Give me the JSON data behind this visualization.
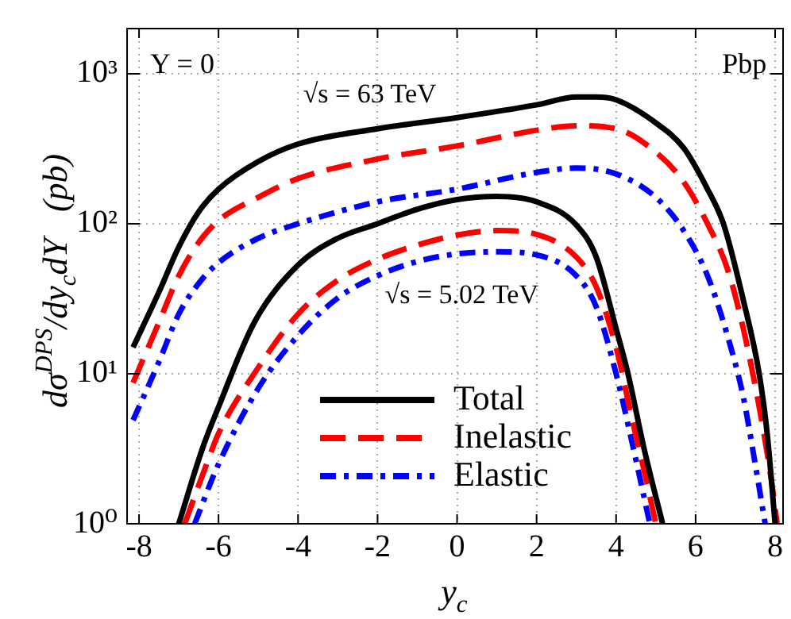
{
  "chart_data": {
    "type": "line",
    "xlabel": "y$_{c}$",
    "ylabel": "dσ$^{DPS}$/dy$_{c}$dY   (pb)",
    "annotations": [
      "Y = 0",
      "Pbp",
      "√s = 63 TeV",
      "√s = 5.02 TeV"
    ],
    "xlim": [
      -8.3,
      8.2
    ],
    "xticks": [
      -8,
      -6,
      -4,
      -2,
      0,
      2,
      4,
      6,
      8
    ],
    "ylim": [
      1,
      2000
    ],
    "yticks": [
      {
        "value": 1,
        "label": "10⁰"
      },
      {
        "value": 10,
        "label": "10¹"
      },
      {
        "value": 100,
        "label": "10²"
      },
      {
        "value": 1000,
        "label": "10³"
      }
    ],
    "log": "y",
    "grid": true,
    "legend": "bottom",
    "marker": "none",
    "series": [
      {
        "name": "Total",
        "color": "#000000",
        "line_style": "solid",
        "x": [
          -8.15,
          -7.5,
          -7,
          -6.5,
          -6,
          -5,
          -4,
          -2,
          0,
          2,
          3,
          3.5,
          4,
          5,
          5.7,
          6.3,
          6.7,
          7.2,
          7.6,
          7.8,
          8.0
        ],
        "values": [
          15,
          35,
          70,
          120,
          170,
          260,
          340,
          430,
          510,
          620,
          700,
          700,
          670,
          470,
          320,
          170,
          100,
          31,
          10,
          4,
          1
        ]
      },
      {
        "name": "Inelastic",
        "color": "#ff0000",
        "line_style": "dashed",
        "x": [
          -8.15,
          -7.5,
          -7,
          -6.5,
          -6,
          -5,
          -4,
          -2,
          0,
          2,
          3,
          4,
          5,
          5.7,
          6.3,
          6.8,
          7.2,
          7.6,
          7.9,
          8.05
        ],
        "values": [
          8.7,
          22,
          45,
          75,
          105,
          150,
          200,
          270,
          330,
          420,
          450,
          430,
          300,
          190,
          100,
          50,
          20,
          6,
          2,
          1
        ]
      },
      {
        "name": "Elastic",
        "color": "#0000ff",
        "line_style": "dashdot",
        "x": [
          -8.15,
          -7.5,
          -7,
          -6.5,
          -6,
          -5,
          -4,
          -2,
          0,
          2,
          3,
          4,
          5,
          5.7,
          6.3,
          6.8,
          7.2,
          7.5,
          7.75
        ],
        "values": [
          4.9,
          12,
          25,
          40,
          55,
          80,
          100,
          140,
          170,
          220,
          235,
          215,
          150,
          90,
          45,
          18,
          7,
          2.5,
          1
        ]
      },
      {
        "color": "#000000",
        "line_style": "solid",
        "x": [
          -7.0,
          -6.4,
          -6,
          -5.1,
          -4,
          -3,
          -2,
          -1,
          0,
          1,
          2,
          3,
          3.5,
          4,
          4.3,
          4.7,
          5.17
        ],
        "values": [
          1,
          3.2,
          6,
          22,
          53,
          80,
          100,
          125,
          145,
          152,
          140,
          98,
          60,
          20,
          10,
          3.2,
          1
        ]
      },
      {
        "color": "#ff0000",
        "line_style": "dashed",
        "x": [
          -6.85,
          -6.3,
          -6,
          -5,
          -4,
          -3,
          -2,
          -1,
          0,
          1,
          2,
          3,
          3.5,
          4,
          4.4,
          4.7,
          5.0
        ],
        "values": [
          1,
          2.5,
          4,
          11,
          25,
          42,
          58,
          72,
          84,
          90,
          85,
          60,
          38,
          15,
          5,
          2.3,
          1
        ]
      },
      {
        "color": "#0000ff",
        "line_style": "dashdot",
        "x": [
          -6.6,
          -6,
          -5,
          -4,
          -3,
          -2,
          -1,
          0,
          1,
          2,
          3,
          3.5,
          4,
          4.4,
          4.85
        ],
        "values": [
          1,
          2.5,
          8,
          18,
          32,
          45,
          56,
          63,
          65,
          62,
          45,
          28,
          10,
          3.5,
          1
        ]
      }
    ]
  }
}
